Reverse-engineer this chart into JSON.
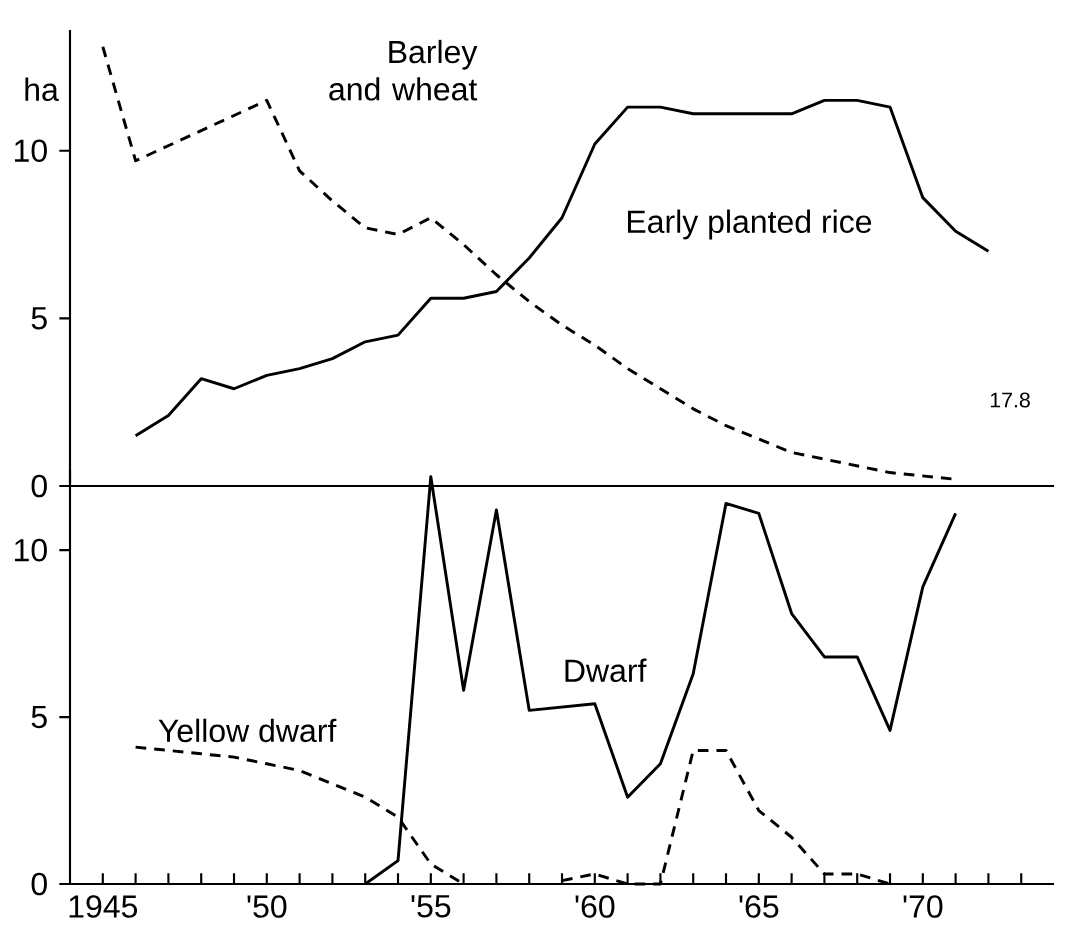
{
  "chart_data": [
    {
      "type": "line",
      "ylabel": "ha",
      "xlim": [
        1944,
        1974
      ],
      "ylim": [
        0,
        13.6
      ],
      "yticks": [
        0,
        5,
        10
      ],
      "tick_labels": "y",
      "series": [
        {
          "name": "Barley and wheat",
          "color": "#000000",
          "line_style": "dashed",
          "x": [
            1945,
            1946,
            1950,
            1951,
            1952,
            1953,
            1954,
            1955,
            1956,
            1957,
            1958,
            1959,
            1960,
            1961,
            1962,
            1963,
            1964,
            1965,
            1966,
            1967,
            1968,
            1969,
            1970,
            1971
          ],
          "values": [
            13.1,
            9.7,
            11.5,
            9.4,
            8.5,
            7.7,
            7.5,
            8.0,
            7.2,
            6.3,
            5.5,
            4.8,
            4.2,
            3.5,
            2.9,
            2.3,
            1.8,
            1.4,
            1.0,
            0.8,
            0.6,
            0.4,
            0.3,
            0.2
          ]
        },
        {
          "name": "Early planted rice",
          "color": "#000000",
          "line_style": "solid",
          "x": [
            1946,
            1947,
            1948,
            1949,
            1950,
            1951,
            1952,
            1953,
            1954,
            1955,
            1956,
            1957,
            1958,
            1959,
            1960,
            1961,
            1962,
            1963,
            1964,
            1965,
            1966,
            1967,
            1968,
            1969,
            1970,
            1971,
            1972
          ],
          "values": [
            1.5,
            2.1,
            3.2,
            2.9,
            3.3,
            3.5,
            3.8,
            4.3,
            4.5,
            5.6,
            5.6,
            5.8,
            6.8,
            8.0,
            10.2,
            11.3,
            11.3,
            11.1,
            11.1,
            11.1,
            11.1,
            11.5,
            11.5,
            11.3,
            8.6,
            7.6,
            7.0
          ]
        }
      ]
    },
    {
      "type": "line",
      "xlim": [
        1944,
        1974
      ],
      "ylim": [
        0,
        12.4
      ],
      "yticks": [
        0,
        5,
        10
      ],
      "xticks": [
        {
          "value": 1945,
          "label": "1945"
        },
        {
          "value": 1946,
          "label": null
        },
        {
          "value": 1947,
          "label": null
        },
        {
          "value": 1948,
          "label": null
        },
        {
          "value": 1949,
          "label": null
        },
        {
          "value": 1950,
          "label": "'50"
        },
        {
          "value": 1951,
          "label": null
        },
        {
          "value": 1952,
          "label": null
        },
        {
          "value": 1953,
          "label": null
        },
        {
          "value": 1954,
          "label": null
        },
        {
          "value": 1955,
          "label": "'55"
        },
        {
          "value": 1956,
          "label": null
        },
        {
          "value": 1957,
          "label": null
        },
        {
          "value": 1958,
          "label": null
        },
        {
          "value": 1959,
          "label": null
        },
        {
          "value": 1960,
          "label": "'60"
        },
        {
          "value": 1961,
          "label": null
        },
        {
          "value": 1962,
          "label": null
        },
        {
          "value": 1963,
          "label": null
        },
        {
          "value": 1964,
          "label": null
        },
        {
          "value": 1965,
          "label": "'65"
        },
        {
          "value": 1966,
          "label": null
        },
        {
          "value": 1967,
          "label": null
        },
        {
          "value": 1968,
          "label": null
        },
        {
          "value": 1969,
          "label": null
        },
        {
          "value": 1970,
          "label": "'70"
        },
        {
          "value": 1971,
          "label": null
        },
        {
          "value": 1972,
          "label": null
        },
        {
          "value": 1973,
          "label": null
        }
      ],
      "annotations": [
        "17.8"
      ],
      "series": [
        {
          "name": "Dwarf",
          "color": "#000000",
          "line_style": "solid",
          "x": [
            1953,
            1954,
            1955,
            1956,
            1957,
            1958,
            1960,
            1961,
            1962,
            1963,
            1964,
            1965,
            1966,
            1967,
            1968,
            1969,
            1970,
            1971
          ],
          "values": [
            0,
            0.7,
            12.2,
            5.8,
            11.2,
            5.2,
            5.4,
            2.6,
            3.6,
            6.3,
            11.4,
            11.1,
            8.1,
            6.8,
            6.8,
            4.6,
            8.9,
            11.1
          ]
        },
        {
          "name": "Yellow dwarf",
          "color": "#000000",
          "line_style": "dashed",
          "x": [
            1946,
            1947,
            1948,
            1949,
            1950,
            1951,
            1952,
            1953,
            1954,
            1955,
            1956,
            1957,
            1958,
            1959,
            1960,
            1961,
            1962,
            1963,
            1964,
            1965,
            1966,
            1967,
            1968,
            1969
          ],
          "values": [
            4.1,
            4.0,
            3.9,
            3.8,
            3.6,
            3.4,
            3.0,
            2.6,
            2.0,
            0.6,
            0.0,
            null,
            null,
            0.1,
            0.3,
            0.0,
            0.0,
            4.0,
            4.0,
            2.2,
            1.4,
            0.3,
            0.3,
            0.0
          ]
        }
      ]
    }
  ]
}
